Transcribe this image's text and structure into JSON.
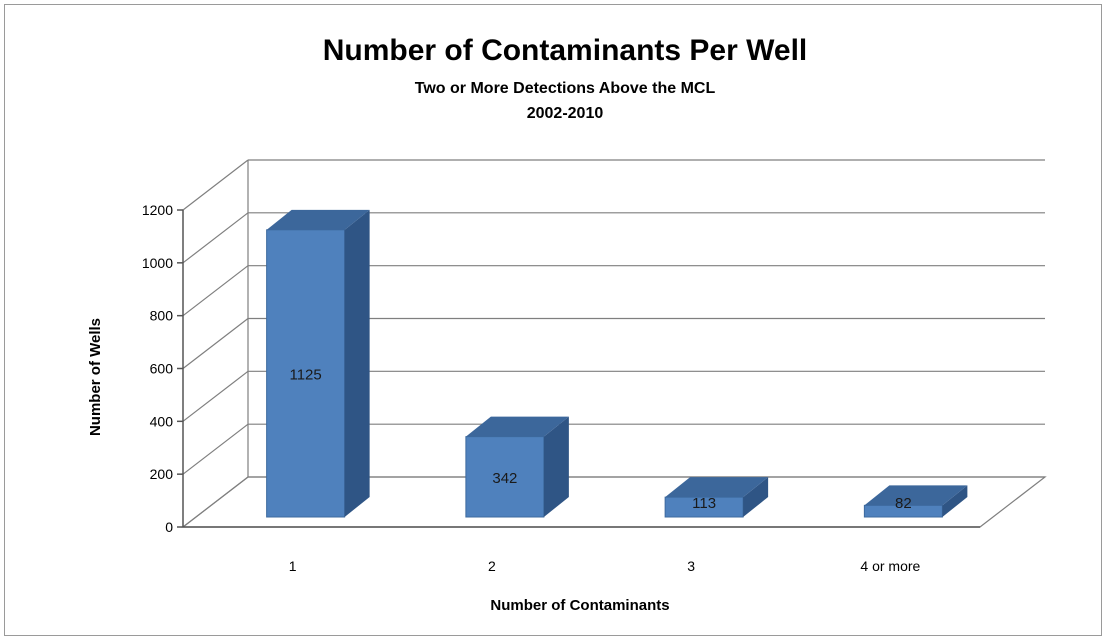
{
  "chart_data": {
    "type": "bar",
    "title": "Number of Contaminants Per Well",
    "subtitle_lines": [
      "Two or More Detections Above the MCL",
      "2002-2010"
    ],
    "xlabel": "Number of Contaminants",
    "ylabel": "Number of Wells",
    "categories": [
      "1",
      "2",
      "3",
      "4 or more"
    ],
    "values": [
      1125,
      342,
      113,
      82
    ],
    "data_labels": [
      "1125",
      "342",
      "113",
      "82"
    ],
    "ylim": [
      0,
      1200
    ],
    "yticks": [
      0,
      200,
      400,
      600,
      800,
      1000,
      1200
    ],
    "grid": true,
    "legend": "none",
    "colors": {
      "bar_front": "#4f81bd",
      "bar_side": "#2f5585",
      "bar_top": "#3c679b",
      "grid": "#7f7f7f"
    }
  }
}
